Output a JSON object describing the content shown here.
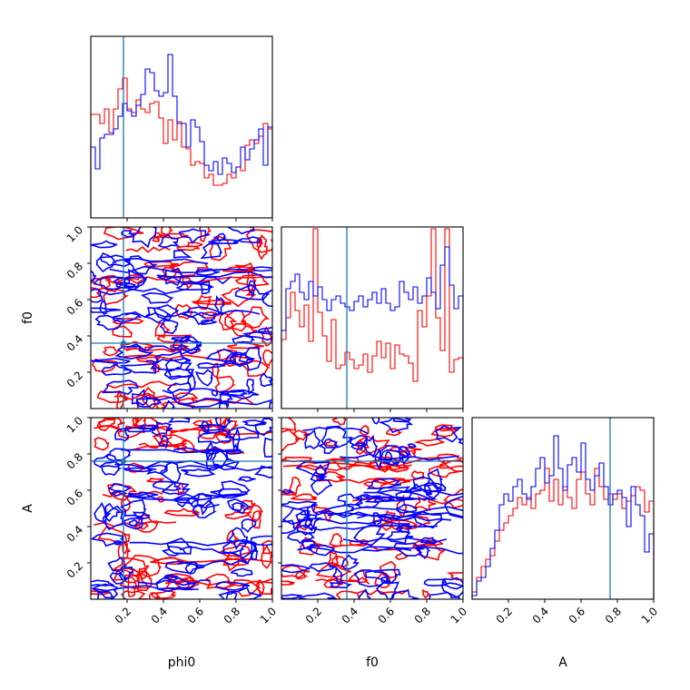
{
  "chart_data": {
    "type": "corner",
    "parameters": [
      "phi0",
      "f0",
      "A"
    ],
    "axis_labels": {
      "x": [
        "phi0",
        "f0",
        "A"
      ],
      "y_rows": [
        "",
        "f0",
        "A"
      ]
    },
    "range": [
      0,
      1
    ],
    "ticks": [
      0.2,
      0.4,
      0.6,
      0.8,
      1.0
    ],
    "tick_labels_y": [
      "0.2",
      "0.4",
      "0.6",
      "0.8",
      "1.0"
    ],
    "tick_labels_x": [
      "0.2",
      "0.4",
      "0.6",
      "0.8",
      "1.0"
    ],
    "truths": [
      0.18,
      0.36,
      0.76
    ],
    "series_colors": [
      "#ff0000",
      "#0000ff"
    ],
    "truth_color": "#1f77b4",
    "histograms": [
      {
        "parameter": "phi0",
        "bins": 40,
        "ylim": [
          0,
          1
        ],
        "series": [
          {
            "color": "#ff0000",
            "values": [
              0.57,
              0.57,
              0.52,
              0.6,
              0.47,
              0.6,
              0.71,
              0.77,
              0.6,
              0.58,
              0.65,
              0.6,
              0.58,
              0.63,
              0.64,
              0.55,
              0.41,
              0.54,
              0.43,
              0.53,
              0.39,
              0.38,
              0.29,
              0.31,
              0.3,
              0.22,
              0.24,
              0.18,
              0.18,
              0.19,
              0.24,
              0.22,
              0.28,
              0.26,
              0.4,
              0.43,
              0.41,
              0.45,
              0.52,
              0.49
            ]
          },
          {
            "color": "#0000ff",
            "values": [
              0.39,
              0.27,
              0.44,
              0.46,
              0.46,
              0.49,
              0.56,
              0.63,
              0.59,
              0.56,
              0.62,
              0.68,
              0.82,
              0.8,
              0.7,
              0.67,
              0.69,
              0.9,
              0.67,
              0.52,
              0.52,
              0.39,
              0.54,
              0.5,
              0.42,
              0.29,
              0.26,
              0.31,
              0.24,
              0.33,
              0.3,
              0.25,
              0.28,
              0.39,
              0.32,
              0.38,
              0.43,
              0.49,
              0.29,
              0.5
            ]
          }
        ]
      },
      {
        "parameter": "f0",
        "bins": 40,
        "ylim": [
          0,
          1
        ],
        "series": [
          {
            "color": "#ff0000",
            "values": [
              0.38,
              0.5,
              0.64,
              0.54,
              0.45,
              0.57,
              0.37,
              0.99,
              0.53,
              0.4,
              0.26,
              0.49,
              0.22,
              0.24,
              0.31,
              0.27,
              0.22,
              0.24,
              0.3,
              0.2,
              0.29,
              0.37,
              0.28,
              0.36,
              0.22,
              0.35,
              0.3,
              0.29,
              0.25,
              0.15,
              0.54,
              0.45,
              0.62,
              0.99,
              0.5,
              0.32,
              0.99,
              0.2,
              0.27,
              0.28
            ]
          },
          {
            "color": "#0000ff",
            "values": [
              0.43,
              0.66,
              0.7,
              0.74,
              0.64,
              0.6,
              0.7,
              0.62,
              0.67,
              0.6,
              0.54,
              0.6,
              0.62,
              0.58,
              0.56,
              0.54,
              0.59,
              0.62,
              0.56,
              0.6,
              0.64,
              0.58,
              0.66,
              0.58,
              0.54,
              0.56,
              0.7,
              0.64,
              0.6,
              0.67,
              0.58,
              0.62,
              0.72,
              0.64,
              0.55,
              0.79,
              0.89,
              0.68,
              0.55,
              0.62
            ]
          }
        ]
      },
      {
        "parameter": "A",
        "bins": 40,
        "ylim": [
          0,
          1
        ],
        "series": [
          {
            "color": "#ff0000",
            "values": [
              0.04,
              0.12,
              0.18,
              0.22,
              0.24,
              0.32,
              0.38,
              0.42,
              0.46,
              0.5,
              0.56,
              0.52,
              0.56,
              0.5,
              0.58,
              0.6,
              0.72,
              0.54,
              0.66,
              0.52,
              0.62,
              0.56,
              0.5,
              0.66,
              0.7,
              0.58,
              0.52,
              0.72,
              0.62,
              0.55,
              0.58,
              0.55,
              0.58,
              0.5,
              0.54,
              0.57,
              0.62,
              0.6,
              0.48,
              0.54
            ]
          },
          {
            "color": "#0000ff",
            "values": [
              0.02,
              0.1,
              0.12,
              0.18,
              0.28,
              0.38,
              0.52,
              0.58,
              0.54,
              0.62,
              0.66,
              0.58,
              0.55,
              0.62,
              0.72,
              0.78,
              0.64,
              0.68,
              0.9,
              0.72,
              0.6,
              0.74,
              0.78,
              0.7,
              0.86,
              0.66,
              0.6,
              0.68,
              0.75,
              0.62,
              0.52,
              0.58,
              0.6,
              0.56,
              0.4,
              0.62,
              0.52,
              0.46,
              0.26,
              0.36
            ]
          }
        ]
      }
    ],
    "contour_panels": [
      {
        "x": "phi0",
        "y": "f0",
        "series_colors": [
          "#ff0000",
          "#0000ff"
        ],
        "truth": [
          0.18,
          0.36
        ]
      },
      {
        "x": "phi0",
        "y": "A",
        "series_colors": [
          "#ff0000",
          "#0000ff"
        ],
        "truth": [
          0.18,
          0.76
        ]
      },
      {
        "x": "f0",
        "y": "A",
        "series_colors": [
          "#ff0000",
          "#0000ff"
        ],
        "truth": [
          0.36,
          0.76
        ]
      }
    ]
  }
}
